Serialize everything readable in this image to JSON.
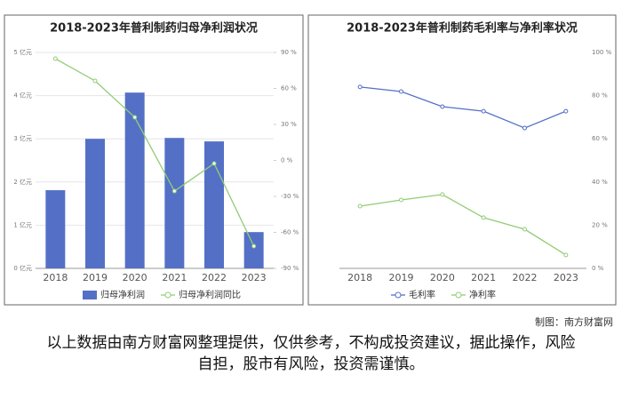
{
  "chart_data": [
    {
      "type": "bar",
      "title": "2018-2023年普利制药归母净利润状况",
      "categories": [
        "2018",
        "2019",
        "2020",
        "2021",
        "2022",
        "2023"
      ],
      "series": [
        {
          "name": "归母净利润",
          "type": "bar",
          "color": "#5470c6",
          "values": [
            1.81,
            3.0,
            4.07,
            3.02,
            2.94,
            0.84
          ]
        },
        {
          "name": "归母净利润同比",
          "type": "line",
          "axis": "y2",
          "color": "#91cc75",
          "values": [
            84.8,
            66.3,
            35.9,
            -25.6,
            -2.6,
            -71.5
          ]
        }
      ],
      "ylim": [
        0,
        5
      ],
      "yticks": [
        {
          "value": 0,
          "label": "0 亿元"
        },
        {
          "value": 1,
          "label": "1 亿元"
        },
        {
          "value": 2,
          "label": "2 亿元"
        },
        {
          "value": 3,
          "label": "3 亿元"
        },
        {
          "value": 4,
          "label": "4 亿元"
        },
        {
          "value": 5,
          "label": "5 亿元"
        }
      ],
      "y2lim": [
        -90,
        90
      ],
      "y2ticks": [
        {
          "value": -90,
          "label": "-90 %"
        },
        {
          "value": -60,
          "label": "-60 %"
        },
        {
          "value": -30,
          "label": "-30 %"
        },
        {
          "value": 0,
          "label": "0 %"
        },
        {
          "value": 30,
          "label": "30 %"
        },
        {
          "value": 60,
          "label": "60 %"
        },
        {
          "value": 90,
          "label": "90 %"
        }
      ],
      "grid": true
    },
    {
      "type": "line",
      "title": "2018-2023年普利制药毛利率与净利率状况",
      "categories": [
        "2018",
        "2019",
        "2020",
        "2021",
        "2022",
        "2023"
      ],
      "series": [
        {
          "name": "毛利率",
          "color": "#5470c6",
          "values": [
            84,
            81.9,
            74.9,
            72.8,
            65,
            72.8
          ]
        },
        {
          "name": "净利率",
          "color": "#91cc75",
          "values": [
            28.8,
            31.7,
            34.2,
            23.5,
            18.1,
            6.2
          ]
        }
      ],
      "ylim": [
        0,
        100
      ],
      "yticks": [
        {
          "value": 0,
          "label": "0 %"
        },
        {
          "value": 20,
          "label": "20 %"
        },
        {
          "value": 40,
          "label": "40 %"
        },
        {
          "value": 60,
          "label": "60 %"
        },
        {
          "value": 80,
          "label": "80 %"
        },
        {
          "value": 100,
          "label": "100 %"
        }
      ],
      "grid": false
    }
  ],
  "credit": "制图：南方财富网",
  "disclaimer": "以上数据由南方财富网整理提供，仅供参考，不构成投资建议，据此操作，风险自担，股市有风险，投资需谨慎。"
}
